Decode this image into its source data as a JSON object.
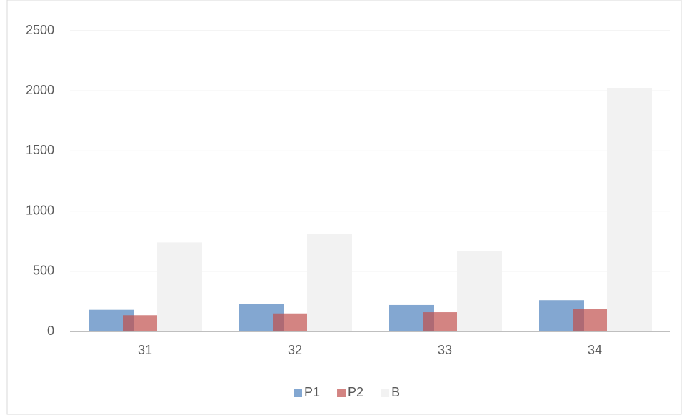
{
  "chart_data": {
    "type": "bar",
    "categories": [
      "31",
      "32",
      "33",
      "34"
    ],
    "series": [
      {
        "name": "P1",
        "color": "#4f81bd",
        "values": [
          180,
          230,
          220,
          260
        ]
      },
      {
        "name": "P2",
        "color": "#c0504d",
        "values": [
          135,
          150,
          160,
          190
        ]
      },
      {
        "name": "B",
        "color": "#f2f2f2",
        "values": [
          740,
          810,
          665,
          2025
        ]
      }
    ],
    "ylim": [
      0,
      2500
    ],
    "yticks": [
      0,
      500,
      1000,
      1500,
      2000,
      2500
    ],
    "grid": true,
    "legend": "bottom"
  }
}
